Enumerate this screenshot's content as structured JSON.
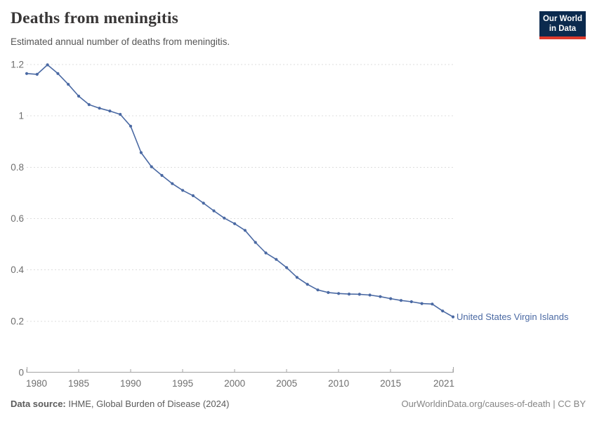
{
  "header": {
    "title": "Deaths from meningitis",
    "subtitle": "Estimated annual number of deaths from meningitis."
  },
  "logo": {
    "line1": "Our World",
    "line2": "in Data",
    "bg_color": "#0b2a4e",
    "bar_color": "#dd3a2c"
  },
  "chart_data": {
    "type": "line",
    "title": "Deaths from meningitis",
    "subtitle": "Estimated annual number of deaths from meningitis.",
    "xlabel": "",
    "ylabel": "",
    "xlim": [
      1980,
      2021
    ],
    "ylim": [
      0,
      1.2
    ],
    "grid": "horizontal-dashed",
    "legend_position": "label-at-line-end",
    "x": [
      1980,
      1981,
      1982,
      1983,
      1984,
      1985,
      1986,
      1987,
      1988,
      1989,
      1990,
      1991,
      1992,
      1993,
      1994,
      1995,
      1996,
      1997,
      1998,
      1999,
      2000,
      2001,
      2002,
      2003,
      2004,
      2005,
      2006,
      2007,
      2008,
      2009,
      2010,
      2011,
      2012,
      2013,
      2014,
      2015,
      2016,
      2017,
      2018,
      2019,
      2020,
      2021
    ],
    "series": [
      {
        "name": "United States Virgin Islands",
        "color": "#4a69a3",
        "values": [
          1.165,
          1.162,
          1.199,
          1.165,
          1.123,
          1.077,
          1.044,
          1.03,
          1.019,
          1.006,
          0.96,
          0.857,
          0.802,
          0.768,
          0.736,
          0.71,
          0.689,
          0.66,
          0.63,
          0.602,
          0.58,
          0.554,
          0.507,
          0.466,
          0.441,
          0.409,
          0.371,
          0.344,
          0.322,
          0.312,
          0.308,
          0.306,
          0.305,
          0.302,
          0.296,
          0.288,
          0.281,
          0.276,
          0.269,
          0.267,
          0.24,
          0.217
        ]
      }
    ],
    "xticks": [
      {
        "year": 1980,
        "label": "1980"
      },
      {
        "year": 1985,
        "label": "1985"
      },
      {
        "year": 1990,
        "label": "1990"
      },
      {
        "year": 1995,
        "label": "1995"
      },
      {
        "year": 2000,
        "label": "2000"
      },
      {
        "year": 2005,
        "label": "2005"
      },
      {
        "year": 2010,
        "label": "2010"
      },
      {
        "year": 2015,
        "label": "2015"
      },
      {
        "year": 2021,
        "label": "2021"
      }
    ],
    "yticks": [
      {
        "value": 0,
        "label": "0"
      },
      {
        "value": 0.2,
        "label": "0.2"
      },
      {
        "value": 0.4,
        "label": "0.4"
      },
      {
        "value": 0.6,
        "label": "0.6"
      },
      {
        "value": 0.8,
        "label": "0.8"
      },
      {
        "value": 1,
        "label": "1"
      },
      {
        "value": 1.2,
        "label": "1.2"
      }
    ]
  },
  "colors": {
    "line": "#4a69a3",
    "gridline": "#dddddd",
    "axis": "#a3a3a3",
    "tick_text": "#6e6e6e",
    "title_text": "#383636",
    "subtitle_text": "#555555"
  },
  "footer": {
    "source_label": "Data source:",
    "source_value": " IHME, Global Burden of Disease (2024)",
    "attribution": "OurWorldinData.org/causes-of-death | CC BY"
  }
}
